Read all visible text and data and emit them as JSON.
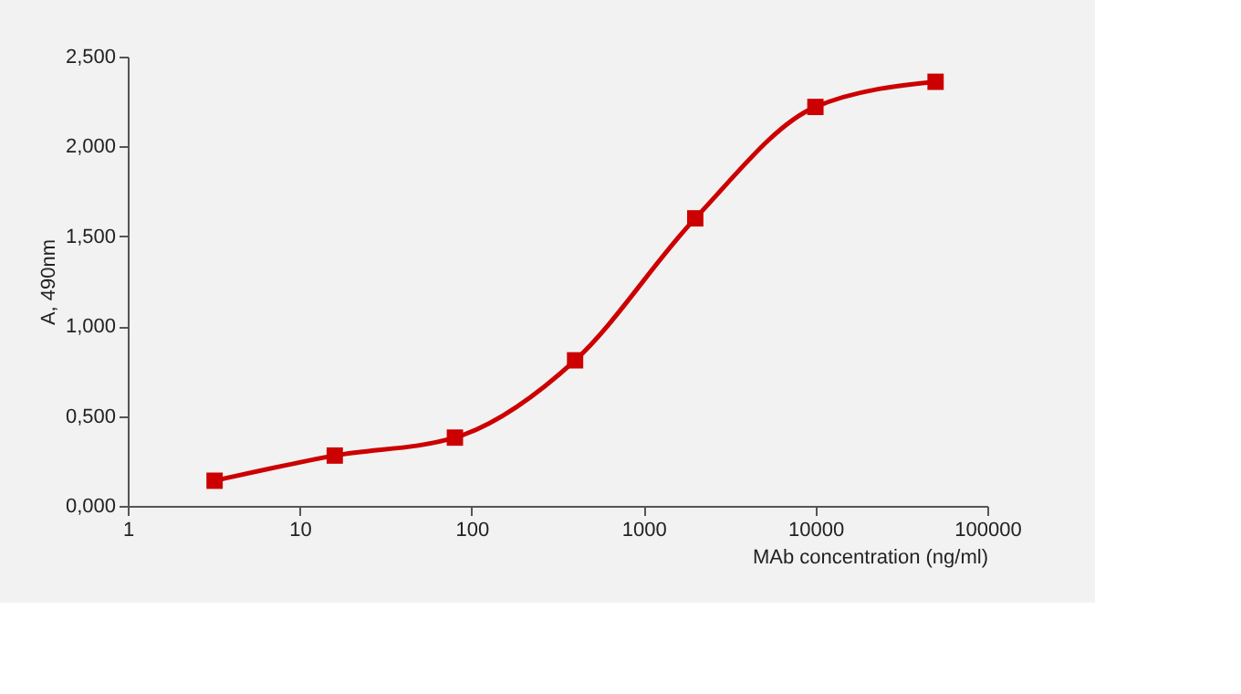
{
  "chart_data": {
    "type": "line",
    "xlabel": "MAb concentration (ng/ml)",
    "ylabel": "A, 490nm",
    "x": [
      3.2,
      16,
      80,
      400,
      2000,
      10000,
      50000
    ],
    "series": [
      {
        "color": "#cc0000",
        "values": [
          0.14,
          0.28,
          0.38,
          0.81,
          1.6,
          2.22,
          2.36
        ]
      }
    ],
    "log": "x",
    "xlim": [
      1,
      100000
    ],
    "xticks": [
      1,
      10,
      100,
      1000,
      10000,
      100000
    ],
    "ylim": [
      0,
      2.5
    ],
    "yticks": [
      {
        "value": 0,
        "label": "0,000"
      },
      {
        "value": 0.5,
        "label": "0,500"
      },
      {
        "value": 1,
        "label": "1,000"
      },
      {
        "value": 1.5,
        "label": "1,500"
      },
      {
        "value": 2,
        "label": "2,000"
      },
      {
        "value": 2.5,
        "label": "2,500"
      }
    ],
    "grid": false,
    "marker": "square",
    "line_style": "solid"
  }
}
